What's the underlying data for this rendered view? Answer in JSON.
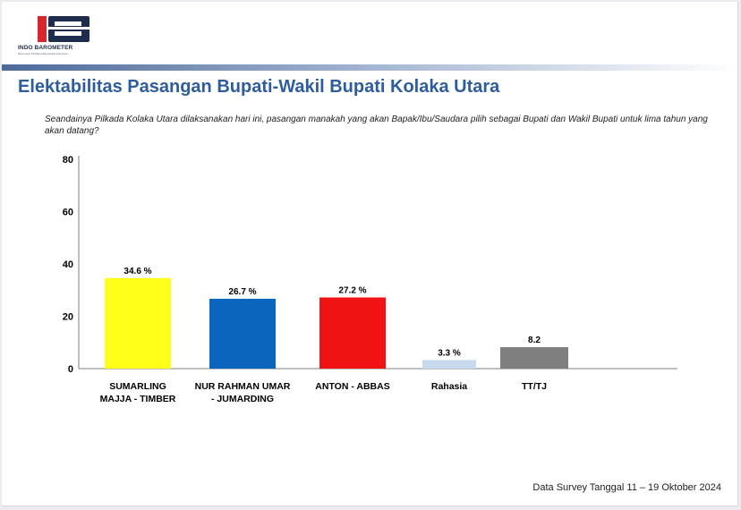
{
  "header": {
    "logo_text": "INDO BAROMETER",
    "logo_subtext": "Barometer Perilaku Masyarakat Indonesia"
  },
  "title": "Elektabilitas Pasangan Bupati-Wakil Bupati Kolaka Utara",
  "question": "Seandainya Pilkada Kolaka Utara dilaksanakan hari ini, pasangan manakah yang akan Bapak/Ibu/Saudara pilih sebagai Bupati dan Wakil Bupati untuk lima tahun yang akan datang?",
  "footer": "Data Survey Tanggal 11 – 19 Oktober 2024",
  "colors": {
    "brand_blue": "#2e5d9e",
    "logo_navy": "#1f2d4d",
    "logo_red": "#d7262e"
  },
  "chart_data": {
    "type": "bar",
    "categories": [
      [
        "SUMARLING",
        "MAJJA - TIMBER"
      ],
      [
        "NUR RAHMAN UMAR",
        "- JUMARDING"
      ],
      [
        "ANTON - ABBAS"
      ],
      [
        "Rahasia"
      ],
      [
        "TT/TJ"
      ]
    ],
    "values": [
      34.6,
      26.7,
      27.2,
      3.3,
      8.2
    ],
    "data_labels": [
      "34.6 %",
      "26.7 %",
      "27.2 %",
      "3.3 %",
      "8.2"
    ],
    "bar_colors": [
      "#ffff1a",
      "#0a66bd",
      "#f01313",
      "#c6d9ed",
      "#7f7f7f"
    ],
    "yticks": [
      0,
      20,
      40,
      60,
      80
    ],
    "ylim": [
      0,
      80
    ],
    "title": "",
    "xlabel": "",
    "ylabel": "",
    "grid": false,
    "legend": "none"
  }
}
